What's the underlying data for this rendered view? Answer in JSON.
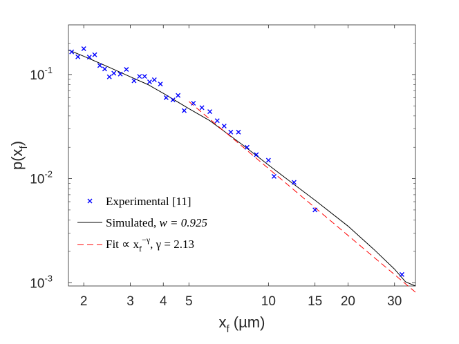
{
  "chart_data": {
    "type": "scatter",
    "x_scale": "log",
    "y_scale": "log",
    "xlim": [
      1.75,
      36
    ],
    "ylim": [
      0.00093,
      0.3
    ],
    "xticks": [
      2,
      3,
      4,
      5,
      10,
      15,
      20,
      30
    ],
    "xtick_labels": [
      "2",
      "3",
      "4",
      "5",
      "10",
      "15",
      "20",
      "30"
    ],
    "yticks": [
      {
        "value": 0.1,
        "base": "10",
        "exp": "-1"
      },
      {
        "value": 0.01,
        "base": "10",
        "exp": "-2"
      },
      {
        "value": 0.001,
        "base": "10",
        "exp": "-3"
      }
    ],
    "xlabel": {
      "main": "x",
      "sub": "f",
      "unit": " (µm)"
    },
    "ylabel": {
      "main": "p(x",
      "sub": "f",
      "close": ")"
    },
    "grid": false,
    "legend_position": "bottom-left",
    "colors": {
      "experimental": "#0000ff",
      "simulated": "#000000",
      "fit": "#ff0000",
      "axes": "#262626"
    },
    "series": [
      {
        "name": "Experimental [11]",
        "kind": "markers",
        "marker": "x",
        "x": [
          1.8,
          1.9,
          2.0,
          2.1,
          2.2,
          2.3,
          2.4,
          2.5,
          2.6,
          2.75,
          2.9,
          3.1,
          3.25,
          3.4,
          3.55,
          3.7,
          3.9,
          4.1,
          4.35,
          4.55,
          4.8,
          5.2,
          5.6,
          6.0,
          6.4,
          6.8,
          7.2,
          7.7,
          8.3,
          9.0,
          10.0,
          10.5,
          12.5,
          15.0,
          32.0
        ],
        "y": [
          0.165,
          0.148,
          0.177,
          0.147,
          0.155,
          0.122,
          0.113,
          0.095,
          0.103,
          0.101,
          0.112,
          0.087,
          0.096,
          0.096,
          0.085,
          0.089,
          0.081,
          0.06,
          0.057,
          0.063,
          0.045,
          0.053,
          0.048,
          0.044,
          0.036,
          0.032,
          0.028,
          0.028,
          0.02,
          0.017,
          0.015,
          0.0105,
          0.0092,
          0.005,
          0.0012
        ]
      },
      {
        "name": "Simulated, ",
        "label_math": "w = 0.925",
        "kind": "line",
        "style": "solid",
        "x": [
          1.75,
          2.0,
          2.5,
          3.0,
          3.5,
          4.0,
          5.0,
          6.0,
          7.0,
          8.0,
          10.0,
          12.0,
          15.0,
          20.0,
          25.0,
          30.0,
          33.0,
          36.0
        ],
        "y": [
          0.172,
          0.15,
          0.117,
          0.095,
          0.08,
          0.066,
          0.047,
          0.036,
          0.027,
          0.021,
          0.0135,
          0.0095,
          0.0062,
          0.0035,
          0.0021,
          0.00135,
          0.00102,
          0.00093
        ]
      },
      {
        "name": "Fit ∝ x",
        "label_sub": "f",
        "label_sup": "−γ",
        "label_tail": ", γ = 2.13",
        "kind": "line",
        "style": "dashed",
        "x": [
          5.0,
          36.0
        ],
        "y": [
          0.055,
          0.00081
        ]
      }
    ]
  }
}
